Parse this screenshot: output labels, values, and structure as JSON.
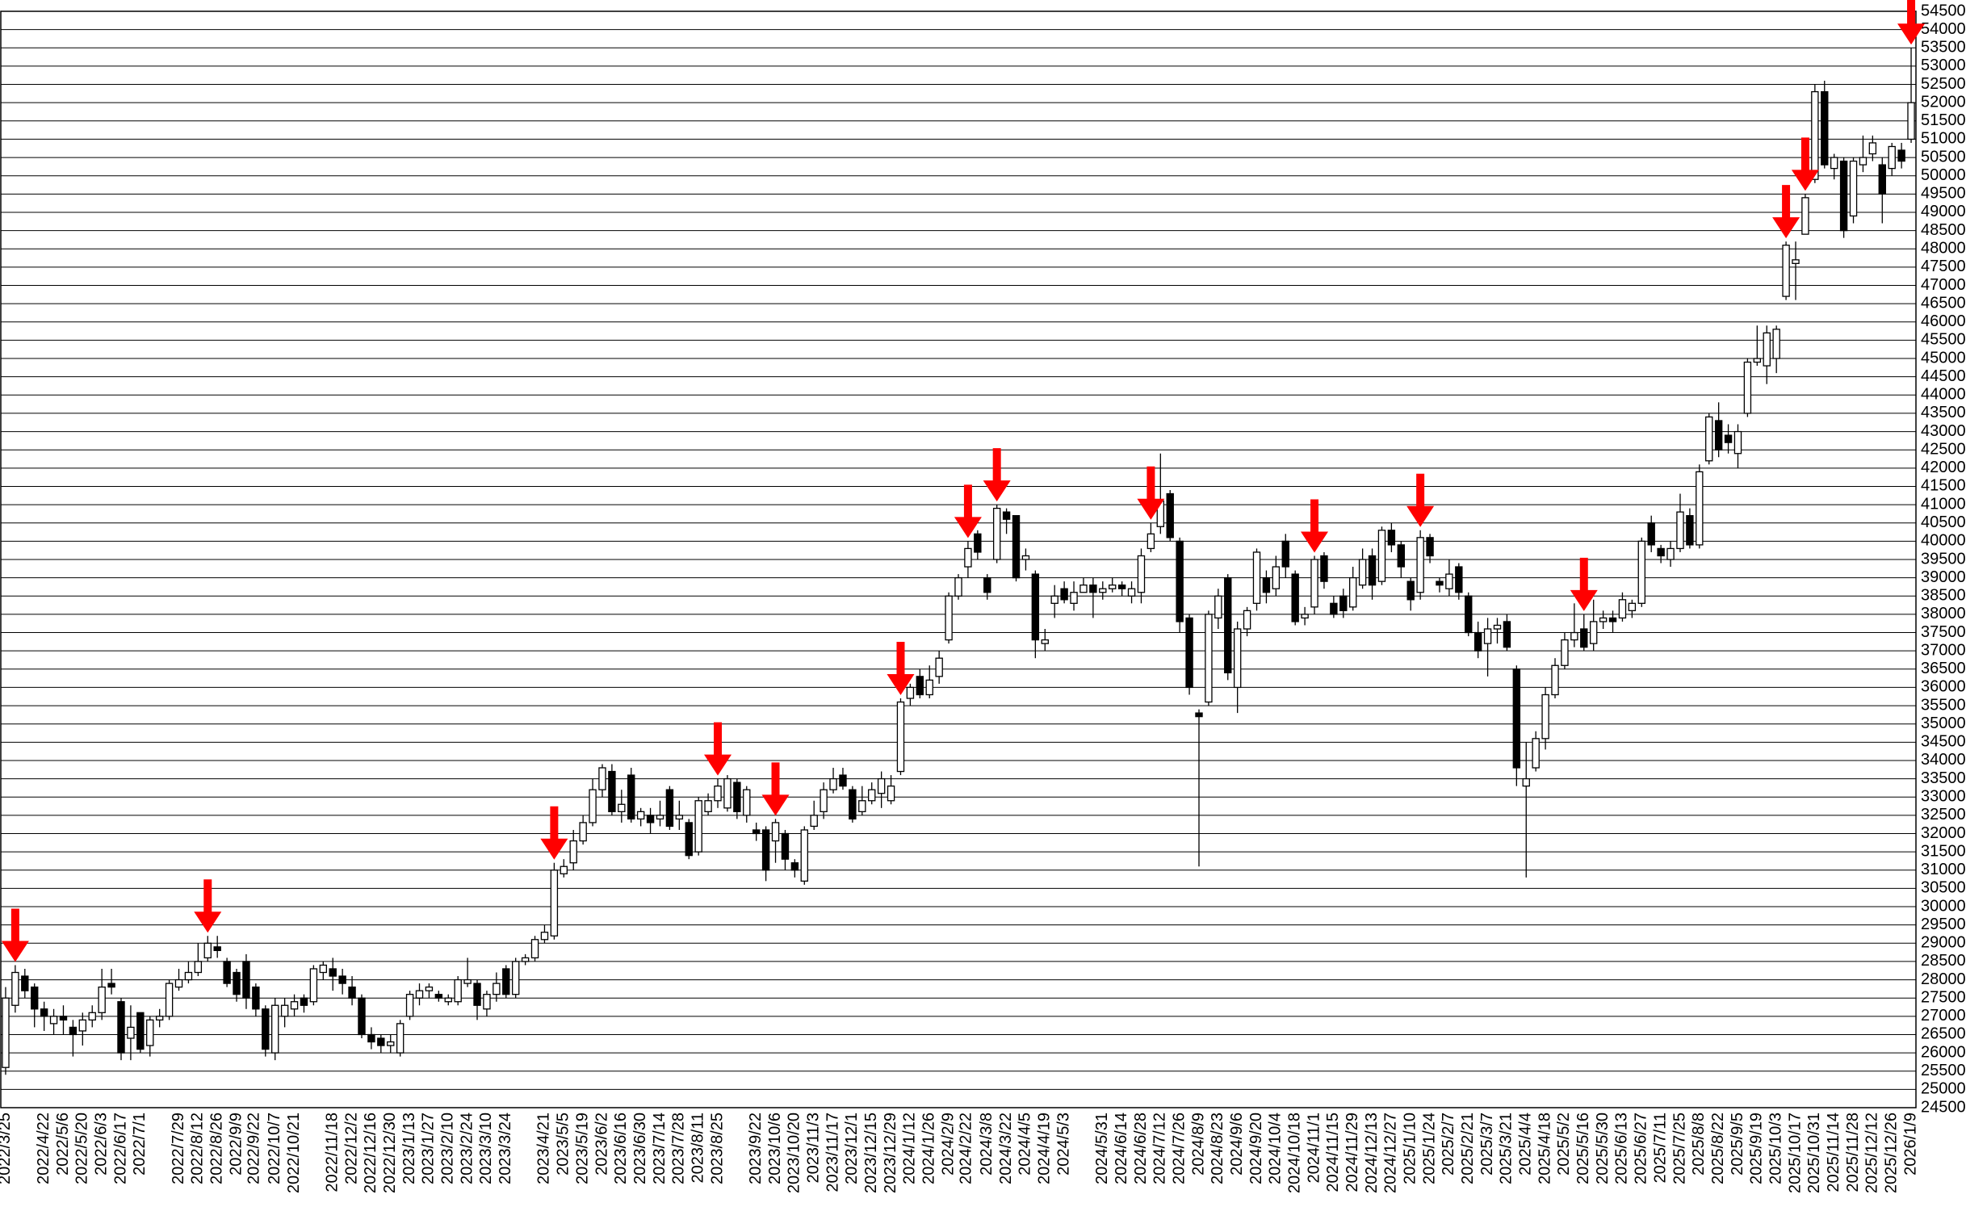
{
  "chart_data": {
    "type": "candlestick",
    "x": [
      "2022/3/25",
      "2022/4/22",
      "2022/5/6",
      "2022/5/20",
      "2022/6/3",
      "2022/6/17",
      "2022/7/1",
      "2022/7/29",
      "2022/8/12",
      "2022/8/26",
      "2022/9/9",
      "2022/9/22",
      "2022/10/7",
      "2022/10/21",
      "2022/11/18",
      "2022/12/2",
      "2022/12/16",
      "2022/12/30",
      "2023/1/13",
      "2023/1/27",
      "2023/2/10",
      "2023/2/24",
      "2023/3/10",
      "2023/3/24",
      "2023/4/21",
      "2023/5/5",
      "2023/5/19",
      "2023/6/2",
      "2023/6/16",
      "2023/6/30",
      "2023/7/14",
      "2023/7/28",
      "2023/8/11",
      "2023/8/25",
      "2023/9/22",
      "2023/10/6",
      "2023/10/20",
      "2023/11/3",
      "2023/11/17",
      "2023/12/1",
      "2023/12/15",
      "2023/12/29",
      "2024/1/12",
      "2024/1/26",
      "2024/2/9",
      "2024/2/22",
      "2024/3/8",
      "2024/3/22",
      "2024/4/5",
      "2024/4/19",
      "2024/5/3",
      "2024/5/31",
      "2024/6/14",
      "2024/6/28",
      "2024/7/12",
      "2024/7/26",
      "2024/8/9",
      "2024/8/23",
      "2024/9/6",
      "2024/9/20",
      "2024/10/4",
      "2024/10/18",
      "2024/11/1",
      "2024/11/15",
      "2024/11/29",
      "2024/12/13",
      "2024/12/27",
      "2025/1/10",
      "2025/1/24",
      "2025/2/7",
      "2025/2/21",
      "2025/3/7",
      "2025/3/21",
      "2025/4/4",
      "2025/4/18",
      "2025/5/2",
      "2025/5/16",
      "2025/5/30",
      "2025/6/13",
      "2025/6/27",
      "2025/7/11",
      "2025/7/25",
      "2025/8/8",
      "2025/8/22",
      "2025/9/5",
      "2025/9/19",
      "2025/10/3",
      "2025/10/17",
      "2025/10/31",
      "2025/11/14",
      "2025/11/28",
      "2025/12/12",
      "2025/12/26",
      "2026/1/9"
    ],
    "ohlc": [
      [
        25600,
        27800,
        25400,
        27500
      ],
      [
        27300,
        28400,
        27100,
        28200
      ],
      [
        28100,
        28300,
        27500,
        27700
      ],
      [
        27800,
        27900,
        26700,
        27200
      ],
      [
        27200,
        27400,
        26600,
        27000
      ],
      [
        26800,
        27200,
        26500,
        27000
      ],
      [
        27000,
        27300,
        26500,
        26900
      ],
      [
        26700,
        26900,
        25900,
        26500
      ],
      [
        26600,
        27100,
        26200,
        26900
      ],
      [
        26900,
        27300,
        26700,
        27100
      ],
      [
        27100,
        28300,
        26900,
        27800
      ],
      [
        27900,
        28300,
        27600,
        27800
      ],
      [
        27400,
        27500,
        25800,
        26000
      ],
      [
        26400,
        27300,
        25800,
        26700
      ],
      [
        27100,
        27100,
        26000,
        26100
      ],
      [
        26200,
        27000,
        25900,
        26900
      ],
      [
        26900,
        27200,
        26700,
        27000
      ],
      [
        27000,
        28000,
        26900,
        27900
      ],
      [
        27800,
        28300,
        27700,
        28000
      ],
      [
        28000,
        28500,
        27900,
        28200
      ],
      [
        28200,
        29000,
        28100,
        28500
      ],
      [
        28600,
        29200,
        28500,
        29000
      ],
      [
        28900,
        29200,
        28600,
        28800
      ],
      [
        28500,
        28600,
        27800,
        27900
      ],
      [
        28200,
        28300,
        27400,
        27600
      ],
      [
        28500,
        28700,
        27200,
        27500
      ],
      [
        27800,
        27900,
        27000,
        27200
      ],
      [
        27200,
        27300,
        25900,
        26100
      ],
      [
        26000,
        27500,
        25800,
        27300
      ],
      [
        27000,
        27500,
        26700,
        27300
      ],
      [
        27200,
        27600,
        27000,
        27400
      ],
      [
        27500,
        27600,
        27100,
        27300
      ],
      [
        27400,
        28400,
        27300,
        28300
      ],
      [
        28200,
        28500,
        28000,
        28400
      ],
      [
        28300,
        28600,
        27700,
        28100
      ],
      [
        28100,
        28300,
        27600,
        27900
      ],
      [
        27800,
        28100,
        27300,
        27500
      ],
      [
        27500,
        27600,
        26400,
        26500
      ],
      [
        26500,
        26700,
        26100,
        26300
      ],
      [
        26400,
        26500,
        26000,
        26200
      ],
      [
        26200,
        26500,
        26000,
        26300
      ],
      [
        26000,
        26900,
        25900,
        26800
      ],
      [
        27000,
        27700,
        26900,
        27600
      ],
      [
        27500,
        27900,
        27300,
        27700
      ],
      [
        27700,
        27900,
        27500,
        27800
      ],
      [
        27600,
        27700,
        27400,
        27500
      ],
      [
        27400,
        27600,
        27300,
        27500
      ],
      [
        27400,
        28100,
        27300,
        28000
      ],
      [
        27900,
        28600,
        27800,
        28000
      ],
      [
        27900,
        28000,
        26900,
        27300
      ],
      [
        27200,
        27700,
        27000,
        27600
      ],
      [
        27600,
        28200,
        27400,
        27900
      ],
      [
        28300,
        28400,
        27500,
        27600
      ],
      [
        27600,
        28600,
        27500,
        28500
      ],
      [
        28500,
        28700,
        28400,
        28600
      ],
      [
        28600,
        29200,
        28500,
        29100
      ],
      [
        29100,
        29500,
        29000,
        29300
      ],
      [
        29200,
        31200,
        29100,
        31000
      ],
      [
        30900,
        31300,
        30800,
        31100
      ],
      [
        31200,
        32100,
        31000,
        31800
      ],
      [
        31800,
        32500,
        31700,
        32300
      ],
      [
        32300,
        33500,
        32200,
        33200
      ],
      [
        33200,
        33900,
        33000,
        33800
      ],
      [
        33700,
        33900,
        32500,
        32600
      ],
      [
        32600,
        33200,
        32300,
        32800
      ],
      [
        33600,
        33800,
        32300,
        32400
      ],
      [
        32400,
        32700,
        32200,
        32600
      ],
      [
        32500,
        32700,
        32000,
        32300
      ],
      [
        32400,
        32900,
        32200,
        32500
      ],
      [
        33200,
        33300,
        32100,
        32200
      ],
      [
        32400,
        32900,
        32100,
        32500
      ],
      [
        32300,
        32400,
        31300,
        31400
      ],
      [
        31500,
        33000,
        31400,
        32900
      ],
      [
        32600,
        33100,
        32500,
        32900
      ],
      [
        32900,
        33500,
        32700,
        33300
      ],
      [
        32700,
        33600,
        32600,
        33500
      ],
      [
        33400,
        33500,
        32400,
        32600
      ],
      [
        32500,
        33300,
        32300,
        33200
      ],
      [
        32100,
        32300,
        31800,
        32000
      ],
      [
        32100,
        32200,
        30700,
        31000
      ],
      [
        31800,
        32400,
        31200,
        32300
      ],
      [
        32000,
        32100,
        31000,
        31300
      ],
      [
        31200,
        31300,
        30800,
        31000
      ],
      [
        30700,
        32200,
        30600,
        32100
      ],
      [
        32200,
        32900,
        32100,
        32500
      ],
      [
        32600,
        33400,
        32400,
        33200
      ],
      [
        33200,
        33800,
        33100,
        33500
      ],
      [
        33600,
        33800,
        33200,
        33300
      ],
      [
        33200,
        33300,
        32300,
        32400
      ],
      [
        32600,
        33300,
        32500,
        32900
      ],
      [
        32900,
        33400,
        32800,
        33200
      ],
      [
        33100,
        33700,
        32700,
        33500
      ],
      [
        32900,
        33600,
        32800,
        33300
      ],
      [
        33700,
        35700,
        33600,
        35600
      ],
      [
        35700,
        36100,
        35500,
        36000
      ],
      [
        36300,
        36500,
        35700,
        35800
      ],
      [
        35800,
        36600,
        35700,
        36200
      ],
      [
        36300,
        37000,
        36100,
        36800
      ],
      [
        37300,
        38600,
        37200,
        38500
      ],
      [
        38500,
        39100,
        38400,
        39000
      ],
      [
        39300,
        40000,
        39000,
        39800
      ],
      [
        40200,
        40300,
        39500,
        39700
      ],
      [
        39000,
        39100,
        38400,
        38600
      ],
      [
        39500,
        41000,
        39400,
        40900
      ],
      [
        40800,
        40900,
        40200,
        40600
      ],
      [
        40700,
        40700,
        38900,
        39000
      ],
      [
        39500,
        39800,
        39200,
        39600
      ],
      [
        39100,
        39200,
        36800,
        37300
      ],
      [
        37200,
        37600,
        37000,
        37300
      ],
      [
        38300,
        38800,
        37900,
        38500
      ],
      [
        38700,
        38900,
        38300,
        38400
      ],
      [
        38300,
        38900,
        38100,
        38600
      ],
      [
        38600,
        39000,
        38600,
        38800
      ],
      [
        38800,
        39000,
        37900,
        38600
      ],
      [
        38600,
        38900,
        38400,
        38700
      ],
      [
        38700,
        39000,
        38600,
        38800
      ],
      [
        38800,
        38900,
        38500,
        38700
      ],
      [
        38500,
        38900,
        38300,
        38700
      ],
      [
        38600,
        39800,
        38300,
        39600
      ],
      [
        39800,
        40500,
        39700,
        40200
      ],
      [
        40400,
        42400,
        40200,
        41100
      ],
      [
        41300,
        41400,
        40000,
        40100
      ],
      [
        40000,
        40100,
        37500,
        37800
      ],
      [
        37900,
        38000,
        35800,
        36000
      ],
      [
        35300,
        35400,
        31100,
        35200
      ],
      [
        35600,
        38100,
        35500,
        38000
      ],
      [
        37900,
        38700,
        37600,
        38500
      ],
      [
        39000,
        39100,
        36200,
        36400
      ],
      [
        36000,
        37800,
        35300,
        37600
      ],
      [
        37600,
        38200,
        37400,
        38100
      ],
      [
        38300,
        39800,
        38100,
        39700
      ],
      [
        39000,
        39200,
        38300,
        38600
      ],
      [
        38700,
        39600,
        38500,
        39300
      ],
      [
        40000,
        40200,
        39000,
        39300
      ],
      [
        39100,
        39200,
        37700,
        37800
      ],
      [
        37900,
        38200,
        37700,
        38000
      ],
      [
        38200,
        39600,
        38000,
        39500
      ],
      [
        39600,
        39700,
        38700,
        38900
      ],
      [
        38300,
        38500,
        37900,
        38000
      ],
      [
        38500,
        38700,
        37900,
        38100
      ],
      [
        38200,
        39300,
        38100,
        39000
      ],
      [
        38800,
        39800,
        38700,
        39500
      ],
      [
        39600,
        39800,
        38400,
        38800
      ],
      [
        38900,
        40400,
        38800,
        40300
      ],
      [
        40300,
        40500,
        39700,
        39900
      ],
      [
        39900,
        40000,
        39000,
        39300
      ],
      [
        38900,
        39000,
        38100,
        38400
      ],
      [
        38600,
        40300,
        38400,
        40100
      ],
      [
        40100,
        40200,
        39400,
        39600
      ],
      [
        38900,
        39000,
        38600,
        38800
      ],
      [
        38700,
        39500,
        38500,
        39100
      ],
      [
        39300,
        39400,
        38400,
        38600
      ],
      [
        38500,
        38600,
        37400,
        37500
      ],
      [
        37500,
        37800,
        36800,
        37000
      ],
      [
        37200,
        37900,
        36300,
        37600
      ],
      [
        37600,
        37900,
        37200,
        37700
      ],
      [
        37800,
        38000,
        37000,
        37100
      ],
      [
        36500,
        36600,
        33300,
        33800
      ],
      [
        33300,
        34500,
        30800,
        33500
      ],
      [
        33800,
        34800,
        33700,
        34600
      ],
      [
        34600,
        36000,
        34300,
        35800
      ],
      [
        35800,
        36800,
        35700,
        36600
      ],
      [
        36600,
        37500,
        36500,
        37300
      ],
      [
        37300,
        38300,
        37100,
        37500
      ],
      [
        37600,
        38000,
        37000,
        37100
      ],
      [
        37200,
        38400,
        37000,
        37800
      ],
      [
        37800,
        38100,
        37600,
        37900
      ],
      [
        37900,
        38100,
        37500,
        37800
      ],
      [
        37900,
        38600,
        37800,
        38400
      ],
      [
        38100,
        38400,
        37900,
        38300
      ],
      [
        38300,
        40100,
        38200,
        40000
      ],
      [
        40500,
        40700,
        39700,
        39900
      ],
      [
        39800,
        39900,
        39400,
        39600
      ],
      [
        39500,
        40000,
        39300,
        39800
      ],
      [
        39800,
        41300,
        39700,
        40800
      ],
      [
        40700,
        40900,
        39800,
        39900
      ],
      [
        39900,
        42100,
        39800,
        41900
      ],
      [
        42200,
        43500,
        42100,
        43400
      ],
      [
        43300,
        43800,
        42300,
        42500
      ],
      [
        42900,
        43200,
        42400,
        42700
      ],
      [
        42400,
        43200,
        42000,
        43000
      ],
      [
        43500,
        45000,
        43400,
        44900
      ],
      [
        44900,
        45900,
        44800,
        45000
      ],
      [
        44800,
        45900,
        44300,
        45700
      ],
      [
        45000,
        45900,
        44600,
        45800
      ],
      [
        46700,
        48200,
        46600,
        48100
      ],
      [
        47600,
        48200,
        46600,
        47700
      ],
      [
        48400,
        49500,
        48400,
        49400
      ],
      [
        49900,
        52500,
        49800,
        52300
      ],
      [
        52300,
        52600,
        50200,
        50300
      ],
      [
        50200,
        50600,
        49900,
        50500
      ],
      [
        50400,
        50500,
        48300,
        48500
      ],
      [
        48900,
        50500,
        48700,
        50400
      ],
      [
        50300,
        51100,
        50100,
        50500
      ],
      [
        50600,
        51100,
        50400,
        50900
      ],
      [
        50300,
        50500,
        48700,
        49500
      ],
      [
        50200,
        50900,
        50000,
        50800
      ],
      [
        50700,
        50900,
        50200,
        50400
      ],
      [
        51000,
        53500,
        50900,
        52000
      ]
    ],
    "signals": [
      1,
      21,
      57,
      74,
      80,
      93,
      100,
      103,
      119,
      136,
      147,
      164,
      185,
      187,
      198
    ],
    "up_color": "#ffffff",
    "down_color": "#000000",
    "signal_color": "#ff0000",
    "ylim": [
      24500,
      54500
    ],
    "yticks": [
      24500,
      25000,
      25500,
      26000,
      26500,
      27000,
      27500,
      28000,
      28500,
      29000,
      29500,
      30000,
      30500,
      31000,
      31500,
      32000,
      32500,
      33000,
      33500,
      34000,
      34500,
      35000,
      35500,
      36000,
      36500,
      37000,
      37500,
      38000,
      38500,
      39000,
      39500,
      40000,
      40500,
      41000,
      41500,
      42000,
      42500,
      43000,
      43500,
      44000,
      44500,
      45000,
      45500,
      46000,
      46500,
      47000,
      47500,
      48000,
      48500,
      49000,
      49500,
      50000,
      50500,
      51000,
      51500,
      52000,
      52500,
      53000,
      53500,
      54000,
      54500
    ],
    "grid": true
  }
}
